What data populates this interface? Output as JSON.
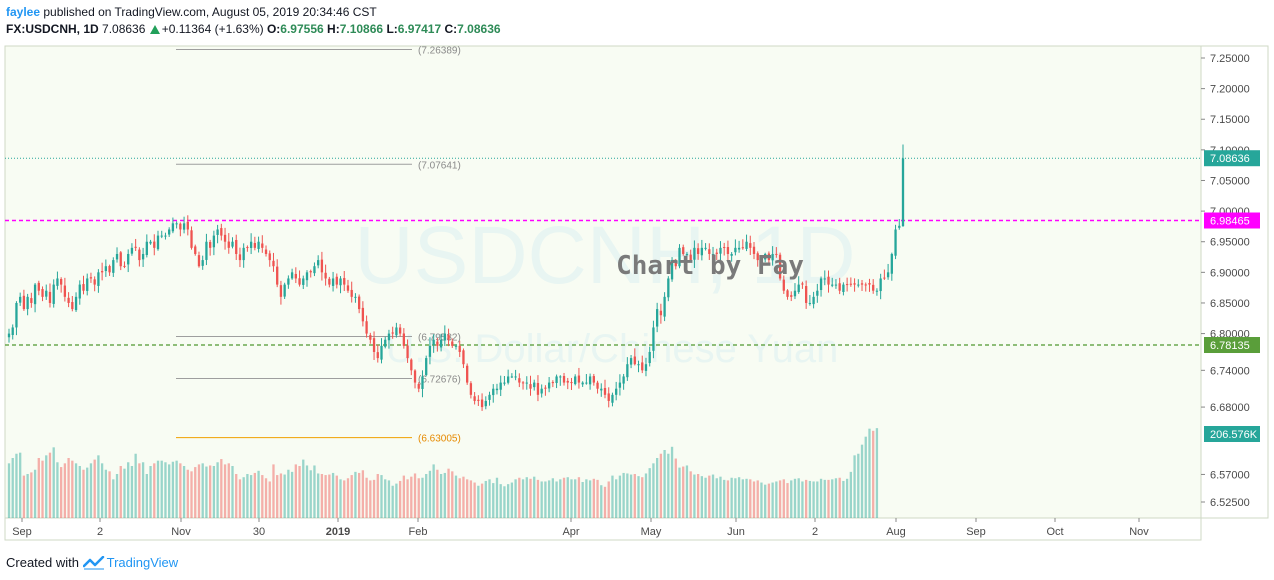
{
  "header": {
    "author": "faylee",
    "published_text": "published on TradingView.com, August 05, 2019 20:34:46 CST",
    "symbol": "FX:USDCNH, 1D",
    "last_price": "7.08636",
    "change": "+0.11364 (+1.63%)",
    "ohlc": [
      {
        "label": "O:",
        "value": "6.97556"
      },
      {
        "label": "H:",
        "value": "7.10866"
      },
      {
        "label": "L:",
        "value": "6.97417"
      },
      {
        "label": "C:",
        "value": "7.08636"
      }
    ]
  },
  "watermark": {
    "symbol": "USDCNH, 1D",
    "name": "U.S. Dollar/Chinese Yuan",
    "annotation": "Chart by Fay"
  },
  "footer": {
    "created_with": "Created with",
    "brand": "TradingView"
  },
  "colors": {
    "up": "#26a69a",
    "down": "#ef5350",
    "price_line": "#26a69a",
    "magenta_line": "#ff00ff",
    "green_line": "#6aa84f",
    "fib_orange": "#f0a000",
    "chart_bg": "#f8fcf3"
  },
  "chart_data": {
    "type": "candlestick",
    "symbol": "FX:USDCNH",
    "interval": "1D",
    "y_axis": {
      "ticks": [
        6.525,
        6.57,
        6.68,
        6.74,
        6.8,
        6.85,
        6.9,
        6.95,
        7.0,
        7.05,
        7.1,
        7.15,
        7.2,
        7.25
      ],
      "tick_labels": [
        "6.52500",
        "6.57000",
        "6.68000",
        "6.74000",
        "6.80000",
        "6.85000",
        "6.90000",
        "6.95000",
        "7.00000",
        "7.05000",
        "7.10000",
        "7.15000",
        "7.20000",
        "7.25000"
      ]
    },
    "x_axis": {
      "labels": [
        {
          "text": "Sep",
          "bold": false
        },
        {
          "text": "2",
          "bold": false
        },
        {
          "text": "Nov",
          "bold": false
        },
        {
          "text": "30",
          "bold": false
        },
        {
          "text": "2019",
          "bold": true
        },
        {
          "text": "Feb",
          "bold": false
        },
        {
          "text": "Apr",
          "bold": false
        },
        {
          "text": "May",
          "bold": false
        },
        {
          "text": "Jun",
          "bold": false
        },
        {
          "text": "2",
          "bold": false
        },
        {
          "text": "Aug",
          "bold": false
        },
        {
          "text": "Sep",
          "bold": false
        },
        {
          "text": "Oct",
          "bold": false
        },
        {
          "text": "Nov",
          "bold": false
        }
      ]
    },
    "price_labels": [
      {
        "name": "last-price",
        "value": "7.08636"
      },
      {
        "name": "magenta-level",
        "value": "6.98465"
      },
      {
        "name": "green-level",
        "value": "6.78135"
      },
      {
        "name": "volume",
        "value": "206.576K"
      }
    ],
    "fib_levels": [
      {
        "label": "(7.26389)",
        "value": 7.26389
      },
      {
        "label": "(7.07641)",
        "value": 7.07641
      },
      {
        "label": "(6.79532)",
        "value": 6.79532
      },
      {
        "label": "(6.72676)",
        "value": 6.72676
      },
      {
        "label": "(6.63005)",
        "value": 6.63005
      }
    ],
    "horizontal_lines": [
      {
        "name": "last-price",
        "value": 7.08636,
        "style": "dotted"
      },
      {
        "name": "magenta-level",
        "value": 6.98465,
        "style": "dashed"
      },
      {
        "name": "green-level",
        "value": 6.78135,
        "style": "dashed"
      }
    ],
    "closes": [
      6.8,
      6.81,
      6.85,
      6.86,
      6.84,
      6.86,
      6.85,
      6.88,
      6.87,
      6.86,
      6.87,
      6.85,
      6.88,
      6.89,
      6.88,
      6.86,
      6.85,
      6.84,
      6.86,
      6.88,
      6.87,
      6.89,
      6.89,
      6.88,
      6.9,
      6.9,
      6.91,
      6.9,
      6.92,
      6.93,
      6.91,
      6.91,
      6.93,
      6.94,
      6.94,
      6.92,
      6.93,
      6.95,
      6.95,
      6.94,
      6.96,
      6.96,
      6.96,
      6.97,
      6.98,
      6.98,
      6.97,
      6.98,
      6.97,
      6.94,
      6.93,
      6.91,
      6.92,
      6.95,
      6.94,
      6.96,
      6.97,
      6.96,
      6.95,
      6.94,
      6.95,
      6.93,
      6.92,
      6.94,
      6.94,
      6.95,
      6.94,
      6.95,
      6.94,
      6.93,
      6.92,
      6.91,
      6.88,
      6.86,
      6.88,
      6.89,
      6.9,
      6.89,
      6.88,
      6.89,
      6.9,
      6.9,
      6.91,
      6.92,
      6.9,
      6.89,
      6.88,
      6.89,
      6.88,
      6.89,
      6.88,
      6.87,
      6.86,
      6.86,
      6.84,
      6.82,
      6.8,
      6.79,
      6.77,
      6.76,
      6.78,
      6.79,
      6.8,
      6.8,
      6.81,
      6.8,
      6.78,
      6.76,
      6.74,
      6.72,
      6.71,
      6.73,
      6.76,
      6.78,
      6.79,
      6.78,
      6.79,
      6.8,
      6.79,
      6.78,
      6.78,
      6.77,
      6.75,
      6.72,
      6.7,
      6.69,
      6.69,
      6.68,
      6.69,
      6.7,
      6.71,
      6.71,
      6.72,
      6.72,
      6.73,
      6.73,
      6.73,
      6.72,
      6.72,
      6.72,
      6.71,
      6.72,
      6.7,
      6.71,
      6.71,
      6.72,
      6.72,
      6.73,
      6.73,
      6.72,
      6.72,
      6.72,
      6.73,
      6.72,
      6.72,
      6.72,
      6.73,
      6.72,
      6.71,
      6.71,
      6.7,
      6.69,
      6.7,
      6.71,
      6.72,
      6.73,
      6.75,
      6.76,
      6.75,
      6.75,
      6.74,
      6.75,
      6.77,
      6.81,
      6.84,
      6.83,
      6.86,
      6.89,
      6.92,
      6.91,
      6.94,
      6.93,
      6.93,
      6.92,
      6.94,
      6.93,
      6.94,
      6.94,
      6.93,
      6.93,
      6.93,
      6.94,
      6.94,
      6.93,
      6.93,
      6.94,
      6.94,
      6.94,
      6.95,
      6.94,
      6.93,
      6.92,
      6.92,
      6.93,
      6.92,
      6.93,
      6.93,
      6.89,
      6.87,
      6.86,
      6.86,
      6.87,
      6.88,
      6.88,
      6.85,
      6.85,
      6.86,
      6.87,
      6.89,
      6.89,
      6.88,
      6.88,
      6.88,
      6.87,
      6.88,
      6.88,
      6.88,
      6.88,
      6.88,
      6.88,
      6.88,
      6.88,
      6.87,
      6.87,
      6.89,
      6.89,
      6.9,
      6.93,
      6.97,
      6.976,
      7.086
    ],
    "volumes": [
      140,
      150,
      158,
      160,
      117,
      120,
      123,
      128,
      150,
      145,
      155,
      160,
      170,
      142,
      133,
      140,
      150,
      145,
      140,
      135,
      128,
      132,
      140,
      147,
      155,
      140,
      128,
      125,
      110,
      120,
      135,
      130,
      142,
      135,
      158,
      140,
      142,
      120,
      135,
      140,
      145,
      145,
      142,
      138,
      143,
      145,
      140,
      135,
      128,
      125,
      133,
      138,
      140,
      134,
      136,
      135,
      142,
      148,
      138,
      140,
      135,
      120,
      110,
      114,
      120,
      118,
      122,
      126,
      118,
      112,
      106,
      138,
      118,
      121,
      119,
      128,
      124,
      138,
      135,
      147,
      136,
      127,
      136,
      121,
      120,
      118,
      119,
      122,
      117,
      110,
      108,
      112,
      118,
      124,
      122,
      127,
      113,
      108,
      109,
      120,
      118,
      110,
      108,
      98,
      102,
      107,
      117,
      110,
      115,
      121,
      112,
      113,
      120,
      126,
      138,
      128,
      120,
      122,
      130,
      125,
      117,
      112,
      115,
      110,
      108,
      104,
      98,
      102,
      107,
      110,
      103,
      113,
      101,
      97,
      101,
      104,
      110,
      113,
      110,
      114,
      111,
      115,
      109,
      106,
      106,
      108,
      112,
      106,
      110,
      113,
      114,
      110,
      110,
      114,
      105,
      110,
      108,
      111,
      109,
      99,
      96,
      106,
      117,
      110,
      117,
      122,
      121,
      119,
      120,
      116,
      114,
      121,
      131,
      140,
      150,
      158,
      165,
      158,
      171,
      149,
      132,
      134,
      136,
      125,
      119,
      120,
      116,
      113,
      117,
      119,
      112,
      115,
      109,
      108,
      113,
      112,
      114,
      110,
      111,
      110,
      106,
      108,
      104,
      100,
      102,
      104,
      106,
      108,
      110,
      103,
      108,
      111,
      112,
      106,
      109,
      107,
      106,
      106,
      111,
      109,
      109,
      110,
      112,
      113,
      107,
      111,
      124,
      155,
      158,
      175,
      190,
      205,
      201,
      206
    ],
    "vol_y_range": [
      60,
      210
    ]
  }
}
